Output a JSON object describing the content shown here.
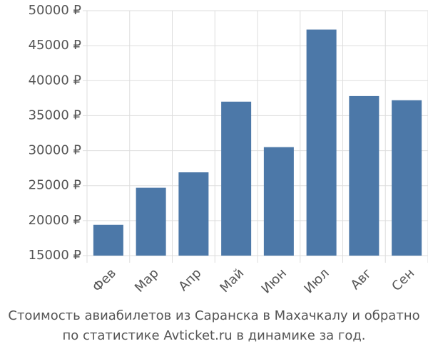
{
  "chart_data": {
    "type": "bar",
    "title": "Стоимость авиабилетов из Саранска в Махачкалу и обратно по статистике Avticket.ru в динамике за год.",
    "categories": [
      "Фев",
      "Мар",
      "Апр",
      "Май",
      "Июн",
      "Июл",
      "Авг",
      "Сен"
    ],
    "values": [
      19400,
      24700,
      26900,
      37000,
      30500,
      47300,
      37800,
      37200
    ],
    "color": "#4c78a8",
    "ylim": [
      15000,
      50000
    ],
    "yticks": [
      {
        "value": 15000,
        "label": "15000 ₽"
      },
      {
        "value": 20000,
        "label": "20000 ₽"
      },
      {
        "value": 25000,
        "label": "25000 ₽"
      },
      {
        "value": 30000,
        "label": "30000 ₽"
      },
      {
        "value": 35000,
        "label": "35000 ₽"
      },
      {
        "value": 40000,
        "label": "40000 ₽"
      },
      {
        "value": 45000,
        "label": "45000 ₽"
      },
      {
        "value": 50000,
        "label": "50000 ₽"
      }
    ],
    "grid": true
  }
}
